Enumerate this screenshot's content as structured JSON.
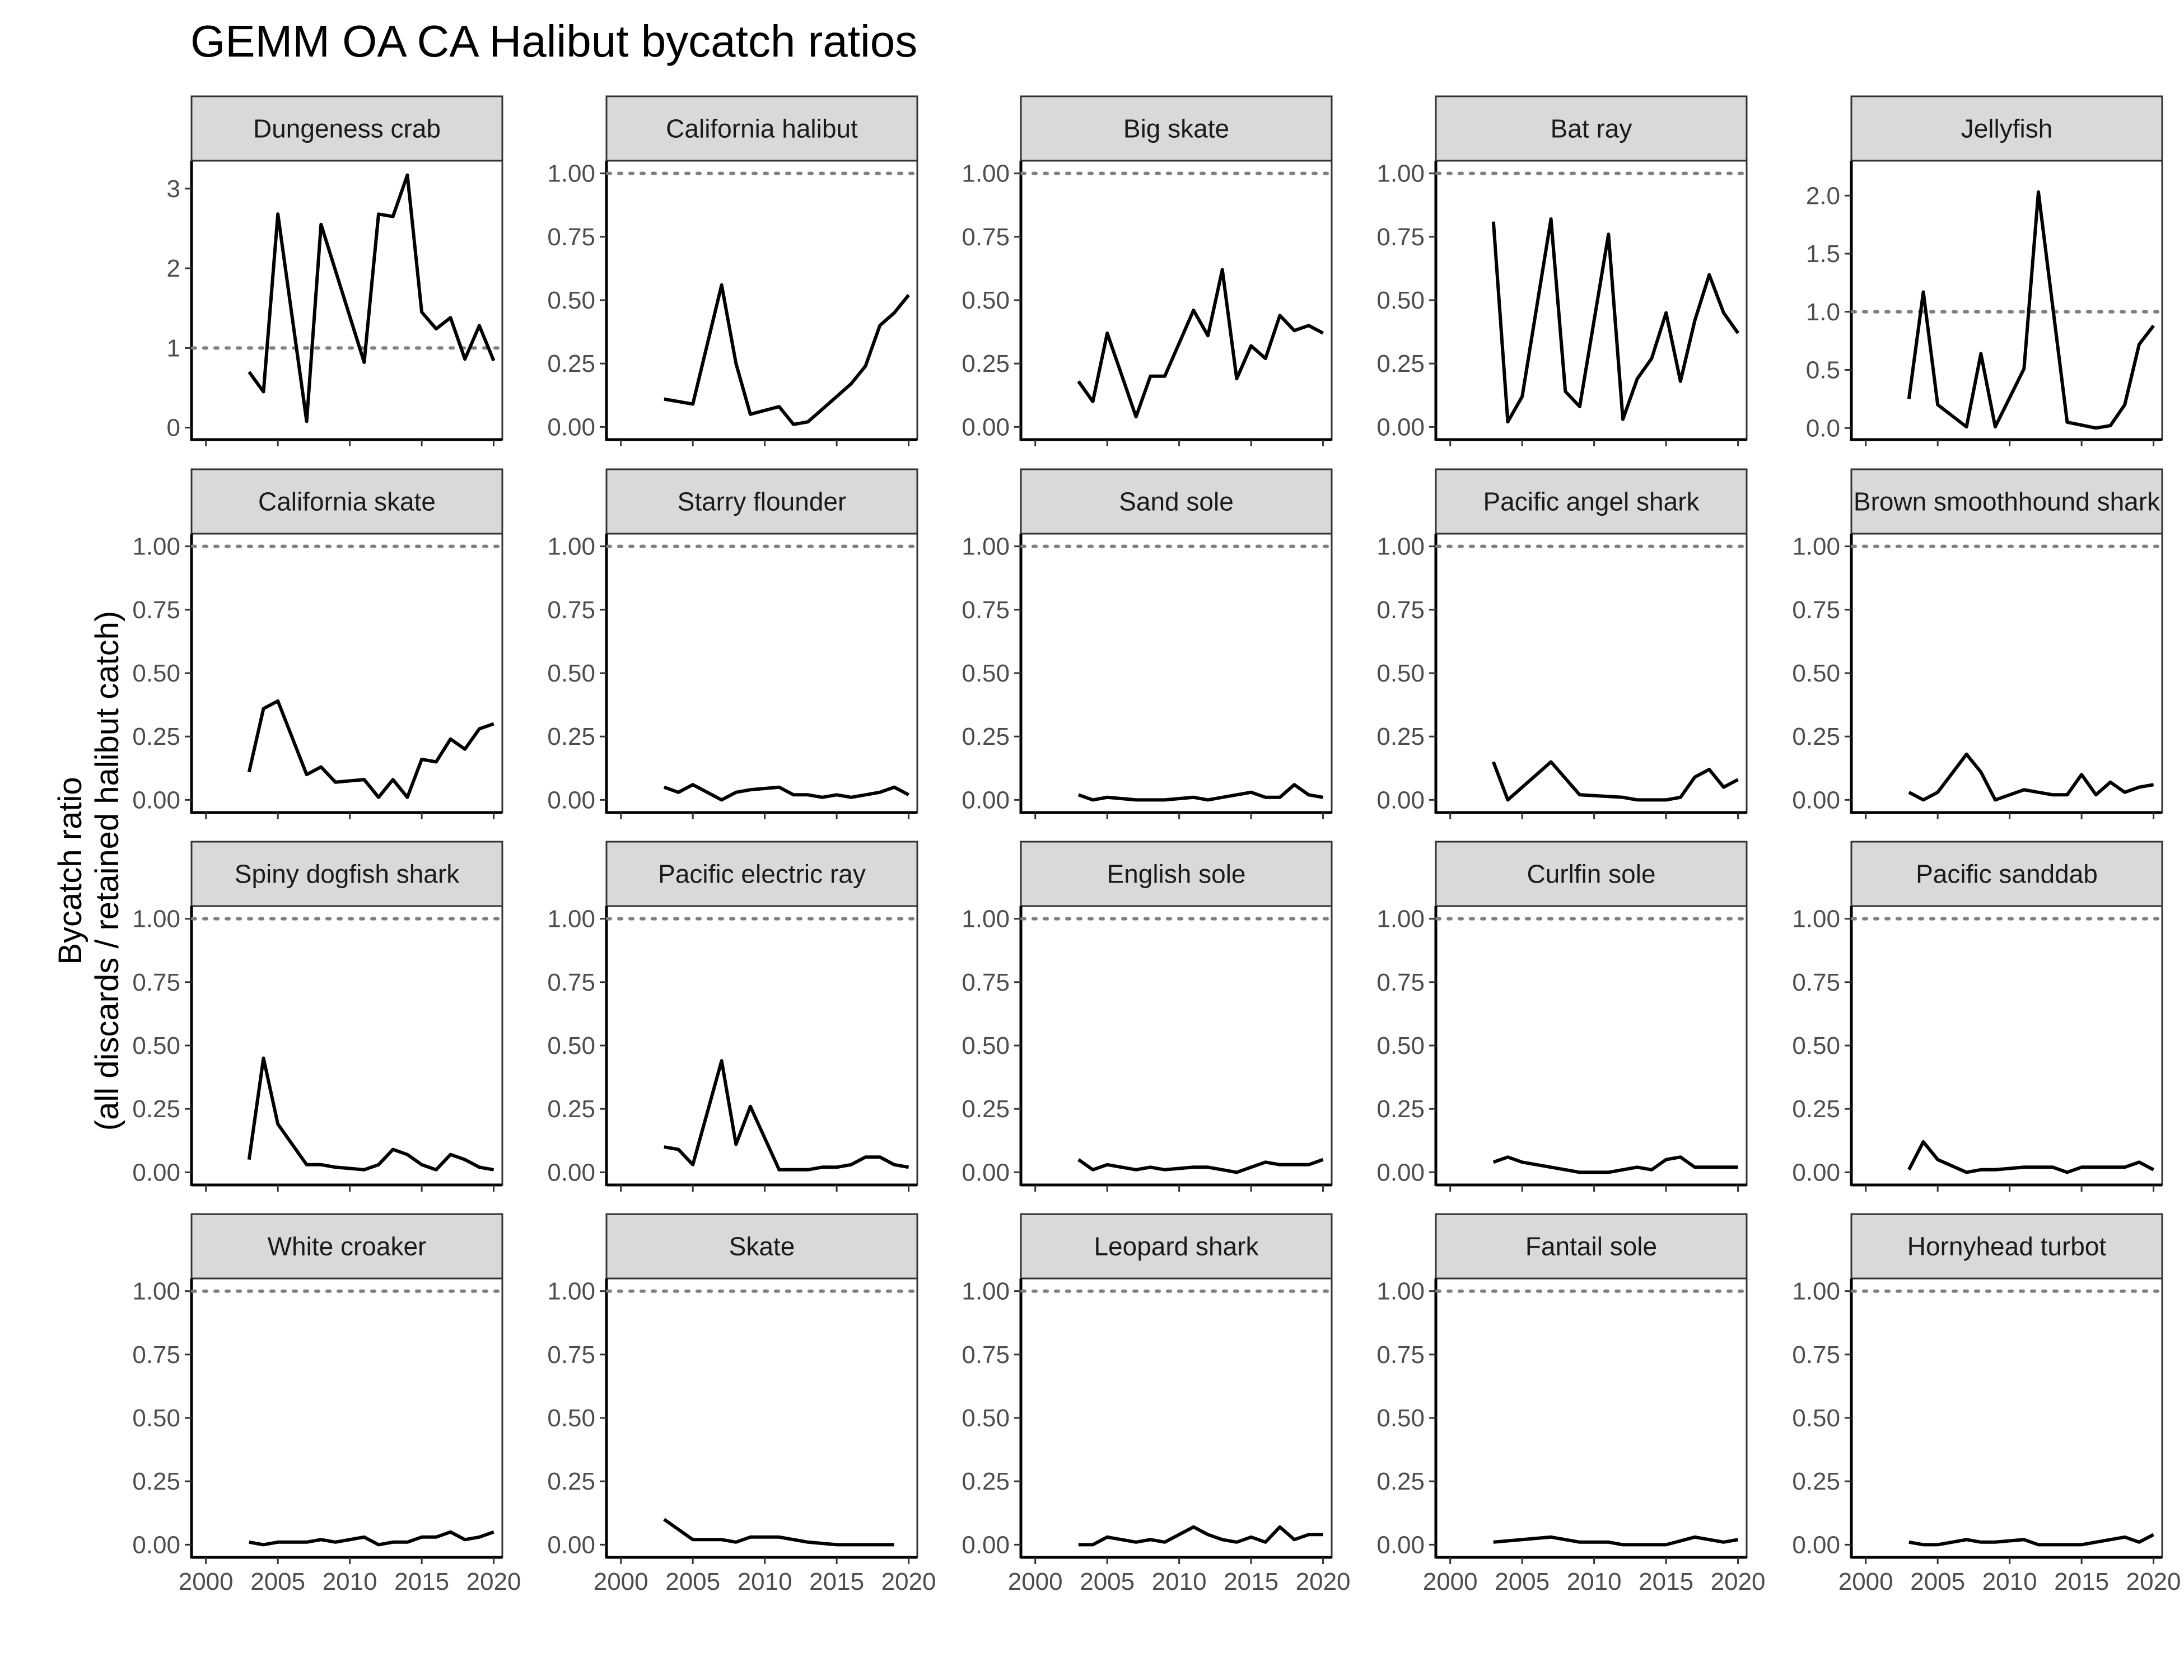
{
  "title": "GEMM OA CA Halibut bycatch ratios",
  "chart_data": {
    "type": "line",
    "title": "GEMM OA CA Halibut bycatch ratios",
    "ylabel_line1": "Bycatch ratio",
    "ylabel_line2": "(all discards / retained halibut catch)",
    "xlabel": "",
    "x_ticks": [
      2000,
      2005,
      2010,
      2015,
      2020
    ],
    "xlim": [
      1999,
      2020.6
    ],
    "reference_line": 1.0,
    "line_color": "#000000",
    "reference_color": "#7f7f7f",
    "strip_color": "#d9d9d9",
    "panels": [
      {
        "name": "Dungeness crab",
        "ylim": [
          -0.15,
          3.35
        ],
        "y_ticks": [
          0,
          1,
          2,
          3
        ],
        "tick_labels": [
          "0",
          "1",
          "2",
          "3"
        ],
        "x": [
          2003,
          2004,
          2005,
          2007,
          2008,
          2011,
          2012,
          2013,
          2014,
          2015,
          2016,
          2017,
          2018,
          2019,
          2020
        ],
        "y": [
          0.7,
          0.45,
          2.68,
          0.08,
          2.55,
          0.82,
          2.68,
          2.65,
          3.17,
          1.45,
          1.24,
          1.38,
          0.86,
          1.28,
          0.84
        ]
      },
      {
        "name": "California halibut",
        "ylim": [
          -0.05,
          1.05
        ],
        "y_ticks": [
          0,
          0.25,
          0.5,
          0.75,
          1
        ],
        "tick_labels": [
          "0.00",
          "0.25",
          "0.50",
          "0.75",
          "1.00"
        ],
        "x": [
          2003,
          2004,
          2005,
          2007,
          2008,
          2009,
          2011,
          2012,
          2013,
          2014,
          2016,
          2017,
          2018,
          2019,
          2020
        ],
        "y": [
          0.11,
          0.1,
          0.09,
          0.56,
          0.25,
          0.05,
          0.08,
          0.01,
          0.02,
          0.07,
          0.17,
          0.24,
          0.4,
          0.45,
          0.52
        ]
      },
      {
        "name": "Big skate",
        "ylim": [
          -0.05,
          1.05
        ],
        "y_ticks": [
          0,
          0.25,
          0.5,
          0.75,
          1
        ],
        "tick_labels": [
          "0.00",
          "0.25",
          "0.50",
          "0.75",
          "1.00"
        ],
        "x": [
          2003,
          2004,
          2005,
          2007,
          2008,
          2009,
          2011,
          2012,
          2013,
          2014,
          2015,
          2016,
          2017,
          2018,
          2019,
          2020
        ],
        "y": [
          0.18,
          0.1,
          0.37,
          0.04,
          0.2,
          0.2,
          0.46,
          0.36,
          0.62,
          0.19,
          0.32,
          0.27,
          0.44,
          0.38,
          0.4,
          0.37
        ]
      },
      {
        "name": "Bat ray",
        "ylim": [
          -0.05,
          1.05
        ],
        "y_ticks": [
          0,
          0.25,
          0.5,
          0.75,
          1
        ],
        "tick_labels": [
          "0.00",
          "0.25",
          "0.50",
          "0.75",
          "1.00"
        ],
        "x": [
          2003,
          2004,
          2005,
          2007,
          2008,
          2009,
          2011,
          2012,
          2013,
          2014,
          2015,
          2016,
          2017,
          2018,
          2019,
          2020
        ],
        "y": [
          0.81,
          0.02,
          0.12,
          0.82,
          0.14,
          0.08,
          0.76,
          0.03,
          0.19,
          0.27,
          0.45,
          0.18,
          0.42,
          0.6,
          0.45,
          0.37
        ]
      },
      {
        "name": "Jellyfish",
        "ylim": [
          -0.1,
          2.3
        ],
        "y_ticks": [
          0,
          0.5,
          1,
          1.5,
          2
        ],
        "tick_labels": [
          "0.0",
          "0.5",
          "1.0",
          "1.5",
          "2.0"
        ],
        "x": [
          2003,
          2004,
          2005,
          2007,
          2008,
          2009,
          2011,
          2012,
          2014,
          2016,
          2017,
          2018,
          2019,
          2020
        ],
        "y": [
          0.25,
          1.17,
          0.2,
          0.01,
          0.64,
          0.01,
          0.51,
          2.03,
          0.05,
          0.0,
          0.02,
          0.2,
          0.72,
          0.88
        ]
      },
      {
        "name": "California skate",
        "ylim": [
          -0.05,
          1.05
        ],
        "y_ticks": [
          0,
          0.25,
          0.5,
          0.75,
          1
        ],
        "tick_labels": [
          "0.00",
          "0.25",
          "0.50",
          "0.75",
          "1.00"
        ],
        "x": [
          2003,
          2004,
          2005,
          2007,
          2008,
          2009,
          2011,
          2012,
          2013,
          2014,
          2015,
          2016,
          2017,
          2018,
          2019,
          2020
        ],
        "y": [
          0.11,
          0.36,
          0.39,
          0.1,
          0.13,
          0.07,
          0.08,
          0.01,
          0.08,
          0.01,
          0.16,
          0.15,
          0.24,
          0.2,
          0.28,
          0.3
        ]
      },
      {
        "name": "Starry flounder",
        "ylim": [
          -0.05,
          1.05
        ],
        "y_ticks": [
          0,
          0.25,
          0.5,
          0.75,
          1
        ],
        "tick_labels": [
          "0.00",
          "0.25",
          "0.50",
          "0.75",
          "1.00"
        ],
        "x": [
          2003,
          2004,
          2005,
          2007,
          2008,
          2009,
          2011,
          2012,
          2013,
          2014,
          2015,
          2016,
          2017,
          2018,
          2019,
          2020
        ],
        "y": [
          0.05,
          0.03,
          0.06,
          0.0,
          0.03,
          0.04,
          0.05,
          0.02,
          0.02,
          0.01,
          0.02,
          0.01,
          0.02,
          0.03,
          0.05,
          0.02
        ]
      },
      {
        "name": "Sand sole",
        "ylim": [
          -0.05,
          1.05
        ],
        "y_ticks": [
          0,
          0.25,
          0.5,
          0.75,
          1
        ],
        "tick_labels": [
          "0.00",
          "0.25",
          "0.50",
          "0.75",
          "1.00"
        ],
        "x": [
          2003,
          2004,
          2005,
          2007,
          2008,
          2009,
          2011,
          2012,
          2013,
          2014,
          2015,
          2016,
          2017,
          2018,
          2019,
          2020
        ],
        "y": [
          0.02,
          0.0,
          0.01,
          0.0,
          0.0,
          0.0,
          0.01,
          0.0,
          0.01,
          0.02,
          0.03,
          0.01,
          0.01,
          0.06,
          0.02,
          0.01
        ]
      },
      {
        "name": "Pacific angel shark",
        "ylim": [
          -0.05,
          1.05
        ],
        "y_ticks": [
          0,
          0.25,
          0.5,
          0.75,
          1
        ],
        "tick_labels": [
          "0.00",
          "0.25",
          "0.50",
          "0.75",
          "1.00"
        ],
        "x": [
          2003,
          2004,
          2007,
          2009,
          2012,
          2013,
          2015,
          2016,
          2017,
          2018,
          2019,
          2020
        ],
        "y": [
          0.15,
          0.0,
          0.15,
          0.02,
          0.01,
          0.0,
          0.0,
          0.01,
          0.09,
          0.12,
          0.05,
          0.08
        ]
      },
      {
        "name": "Brown smoothhound shark",
        "ylim": [
          -0.05,
          1.05
        ],
        "y_ticks": [
          0,
          0.25,
          0.5,
          0.75,
          1
        ],
        "tick_labels": [
          "0.00",
          "0.25",
          "0.50",
          "0.75",
          "1.00"
        ],
        "x": [
          2003,
          2004,
          2005,
          2007,
          2008,
          2009,
          2011,
          2012,
          2013,
          2014,
          2015,
          2016,
          2017,
          2018,
          2019,
          2020
        ],
        "y": [
          0.03,
          0.0,
          0.03,
          0.18,
          0.11,
          0.0,
          0.04,
          0.03,
          0.02,
          0.02,
          0.1,
          0.02,
          0.07,
          0.03,
          0.05,
          0.06
        ]
      },
      {
        "name": "Spiny dogfish shark",
        "ylim": [
          -0.05,
          1.05
        ],
        "y_ticks": [
          0,
          0.25,
          0.5,
          0.75,
          1
        ],
        "tick_labels": [
          "0.00",
          "0.25",
          "0.50",
          "0.75",
          "1.00"
        ],
        "x": [
          2003,
          2004,
          2005,
          2007,
          2008,
          2009,
          2011,
          2012,
          2013,
          2014,
          2015,
          2016,
          2017,
          2018,
          2019,
          2020
        ],
        "y": [
          0.05,
          0.45,
          0.19,
          0.03,
          0.03,
          0.02,
          0.01,
          0.03,
          0.09,
          0.07,
          0.03,
          0.01,
          0.07,
          0.05,
          0.02,
          0.01
        ]
      },
      {
        "name": "Pacific electric ray",
        "ylim": [
          -0.05,
          1.05
        ],
        "y_ticks": [
          0,
          0.25,
          0.5,
          0.75,
          1
        ],
        "tick_labels": [
          "0.00",
          "0.25",
          "0.50",
          "0.75",
          "1.00"
        ],
        "x": [
          2003,
          2004,
          2005,
          2007,
          2008,
          2009,
          2011,
          2012,
          2013,
          2014,
          2015,
          2016,
          2017,
          2018,
          2019,
          2020
        ],
        "y": [
          0.1,
          0.09,
          0.03,
          0.44,
          0.11,
          0.26,
          0.01,
          0.01,
          0.01,
          0.02,
          0.02,
          0.03,
          0.06,
          0.06,
          0.03,
          0.02
        ]
      },
      {
        "name": "English sole",
        "ylim": [
          -0.05,
          1.05
        ],
        "y_ticks": [
          0,
          0.25,
          0.5,
          0.75,
          1
        ],
        "tick_labels": [
          "0.00",
          "0.25",
          "0.50",
          "0.75",
          "1.00"
        ],
        "x": [
          2003,
          2004,
          2005,
          2007,
          2008,
          2009,
          2011,
          2012,
          2013,
          2014,
          2015,
          2016,
          2017,
          2018,
          2019,
          2020
        ],
        "y": [
          0.05,
          0.01,
          0.03,
          0.01,
          0.02,
          0.01,
          0.02,
          0.02,
          0.01,
          0.0,
          0.02,
          0.04,
          0.03,
          0.03,
          0.03,
          0.05
        ]
      },
      {
        "name": "Curlfin sole",
        "ylim": [
          -0.05,
          1.05
        ],
        "y_ticks": [
          0,
          0.25,
          0.5,
          0.75,
          1
        ],
        "tick_labels": [
          "0.00",
          "0.25",
          "0.50",
          "0.75",
          "1.00"
        ],
        "x": [
          2003,
          2004,
          2005,
          2007,
          2008,
          2009,
          2011,
          2012,
          2013,
          2014,
          2015,
          2016,
          2017,
          2018,
          2019,
          2020
        ],
        "y": [
          0.04,
          0.06,
          0.04,
          0.02,
          0.01,
          0.0,
          0.0,
          0.01,
          0.02,
          0.01,
          0.05,
          0.06,
          0.02,
          0.02,
          0.02,
          0.02
        ]
      },
      {
        "name": "Pacific sanddab",
        "ylim": [
          -0.05,
          1.05
        ],
        "y_ticks": [
          0,
          0.25,
          0.5,
          0.75,
          1
        ],
        "tick_labels": [
          "0.00",
          "0.25",
          "0.50",
          "0.75",
          "1.00"
        ],
        "x": [
          2003,
          2004,
          2005,
          2007,
          2008,
          2009,
          2011,
          2012,
          2013,
          2014,
          2015,
          2016,
          2017,
          2018,
          2019,
          2020
        ],
        "y": [
          0.01,
          0.12,
          0.05,
          0.0,
          0.01,
          0.01,
          0.02,
          0.02,
          0.02,
          0.0,
          0.02,
          0.02,
          0.02,
          0.02,
          0.04,
          0.01
        ]
      },
      {
        "name": "White croaker",
        "ylim": [
          -0.05,
          1.05
        ],
        "y_ticks": [
          0,
          0.25,
          0.5,
          0.75,
          1
        ],
        "tick_labels": [
          "0.00",
          "0.25",
          "0.50",
          "0.75",
          "1.00"
        ],
        "x": [
          2003,
          2004,
          2005,
          2007,
          2008,
          2009,
          2011,
          2012,
          2013,
          2014,
          2015,
          2016,
          2017,
          2018,
          2019,
          2020
        ],
        "y": [
          0.01,
          0.0,
          0.01,
          0.01,
          0.02,
          0.01,
          0.03,
          0.0,
          0.01,
          0.01,
          0.03,
          0.03,
          0.05,
          0.02,
          0.03,
          0.05
        ]
      },
      {
        "name": "Skate",
        "ylim": [
          -0.05,
          1.05
        ],
        "y_ticks": [
          0,
          0.25,
          0.5,
          0.75,
          1
        ],
        "tick_labels": [
          "0.00",
          "0.25",
          "0.50",
          "0.75",
          "1.00"
        ],
        "x": [
          2003,
          2004,
          2005,
          2007,
          2008,
          2009,
          2011,
          2013,
          2015,
          2017,
          2019
        ],
        "y": [
          0.1,
          0.06,
          0.02,
          0.02,
          0.01,
          0.03,
          0.03,
          0.01,
          0.0,
          0.0,
          0.0
        ]
      },
      {
        "name": "Leopard shark",
        "ylim": [
          -0.05,
          1.05
        ],
        "y_ticks": [
          0,
          0.25,
          0.5,
          0.75,
          1
        ],
        "tick_labels": [
          "0.00",
          "0.25",
          "0.50",
          "0.75",
          "1.00"
        ],
        "x": [
          2003,
          2004,
          2005,
          2007,
          2008,
          2009,
          2011,
          2012,
          2013,
          2014,
          2015,
          2016,
          2017,
          2018,
          2019,
          2020
        ],
        "y": [
          0.0,
          0.0,
          0.03,
          0.01,
          0.02,
          0.01,
          0.07,
          0.04,
          0.02,
          0.01,
          0.03,
          0.01,
          0.07,
          0.02,
          0.04,
          0.04
        ]
      },
      {
        "name": "Fantail sole",
        "ylim": [
          -0.05,
          1.05
        ],
        "y_ticks": [
          0,
          0.25,
          0.5,
          0.75,
          1
        ],
        "tick_labels": [
          "0.00",
          "0.25",
          "0.50",
          "0.75",
          "1.00"
        ],
        "x": [
          2003,
          2005,
          2007,
          2008,
          2009,
          2011,
          2012,
          2013,
          2015,
          2017,
          2018,
          2019,
          2020
        ],
        "y": [
          0.01,
          0.02,
          0.03,
          0.02,
          0.01,
          0.01,
          0.0,
          0.0,
          0.0,
          0.03,
          0.02,
          0.01,
          0.02
        ]
      },
      {
        "name": "Hornyhead turbot",
        "ylim": [
          -0.05,
          1.05
        ],
        "y_ticks": [
          0,
          0.25,
          0.5,
          0.75,
          1
        ],
        "tick_labels": [
          "0.00",
          "0.25",
          "0.50",
          "0.75",
          "1.00"
        ],
        "x": [
          2003,
          2004,
          2005,
          2007,
          2008,
          2009,
          2011,
          2012,
          2013,
          2014,
          2015,
          2016,
          2017,
          2018,
          2019,
          2020
        ],
        "y": [
          0.01,
          0.0,
          0.0,
          0.02,
          0.01,
          0.01,
          0.02,
          0.0,
          0.0,
          0.0,
          0.0,
          0.01,
          0.02,
          0.03,
          0.01,
          0.04
        ]
      }
    ]
  }
}
